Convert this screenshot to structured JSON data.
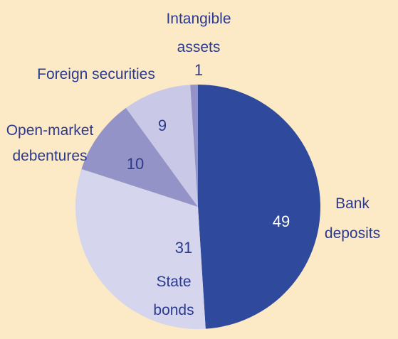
{
  "chart_data": {
    "type": "pie",
    "categories": [
      "Bank deposits",
      "State bonds",
      "Open-market debentures",
      "Foreign securities",
      "Intangible assets"
    ],
    "values": [
      49,
      31,
      10,
      9,
      1
    ],
    "colors": [
      "#2f4a9c",
      "#d5d5ed",
      "#9393c8",
      "#c9c9e7",
      "#9393c8"
    ]
  }
}
